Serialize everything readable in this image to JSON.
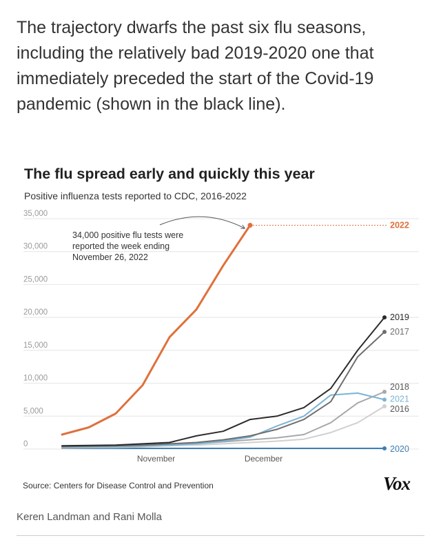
{
  "caption": "The trajectory dwarfs the past six flu seasons, including the relatively bad 2019-2020 one that immediately preceded the start of the Covid-19 pandemic (shown in the black line).",
  "source": "Source: Centers for Disease Control and Prevention",
  "logo": "Vox",
  "byline": "Keren Landman and Rani Molla",
  "chart_data": {
    "type": "line",
    "title": "The flu spread early and quickly this year",
    "subtitle": "Positive influenza tests reported to CDC, 2016-2022",
    "xlabel": "",
    "ylabel": "",
    "ylim": [
      0,
      35000
    ],
    "yticks": [
      0,
      5000,
      10000,
      15000,
      20000,
      25000,
      30000,
      35000
    ],
    "ytick_labels": [
      "0",
      "5,000",
      "10,000",
      "15,000",
      "20,000",
      "25,000",
      "30,000",
      "35,000"
    ],
    "x_weeks": [
      0,
      1,
      2,
      3,
      4,
      5,
      6,
      7,
      8,
      9,
      10,
      11,
      12
    ],
    "xticks": [
      {
        "week": 3.5,
        "label": "November"
      },
      {
        "week": 7.5,
        "label": "December"
      }
    ],
    "grid": true,
    "annotation": {
      "text": [
        "34,000 positive flu tests were",
        "reported the week ending",
        "November 26, 2022"
      ],
      "week": 7,
      "value": 34000
    },
    "reference_line": {
      "value": 34000,
      "style": "dotted"
    },
    "series": [
      {
        "name": "2020",
        "label": "2020",
        "color": "#3d7fb5",
        "highlight": false,
        "values": [
          100,
          100,
          100,
          100,
          100,
          100,
          100,
          100,
          100,
          100,
          100,
          100,
          100
        ]
      },
      {
        "name": "2016",
        "label": "2016",
        "color": "#d0d0d0",
        "highlight": false,
        "values": [
          150,
          200,
          250,
          350,
          500,
          600,
          800,
          1000,
          1200,
          1500,
          2500,
          4000,
          6500
        ]
      },
      {
        "name": "2018",
        "label": "2018",
        "color": "#a8a8a8",
        "highlight": false,
        "values": [
          200,
          250,
          350,
          450,
          600,
          800,
          1100,
          1400,
          1700,
          2200,
          4000,
          7000,
          8700
        ]
      },
      {
        "name": "2021",
        "label": "2021",
        "color": "#7ab4d6",
        "highlight": false,
        "values": [
          300,
          350,
          400,
          500,
          600,
          800,
          1200,
          1800,
          3500,
          5000,
          8200,
          8500,
          7500
        ]
      },
      {
        "name": "2017",
        "label": "2017",
        "color": "#6e6e6e",
        "highlight": false,
        "values": [
          400,
          450,
          500,
          600,
          800,
          1000,
          1400,
          2000,
          3000,
          4500,
          7200,
          14000,
          17800
        ]
      },
      {
        "name": "2019",
        "label": "2019",
        "color": "#2b2b2b",
        "highlight": false,
        "values": [
          500,
          550,
          600,
          800,
          1000,
          2000,
          2700,
          4500,
          5000,
          6300,
          9200,
          15000,
          20000
        ]
      },
      {
        "name": "2022",
        "label": "2022",
        "color": "#e0703a",
        "highlight": true,
        "values": [
          2200,
          3300,
          5400,
          9700,
          17000,
          21200,
          27900,
          34000
        ]
      }
    ]
  }
}
